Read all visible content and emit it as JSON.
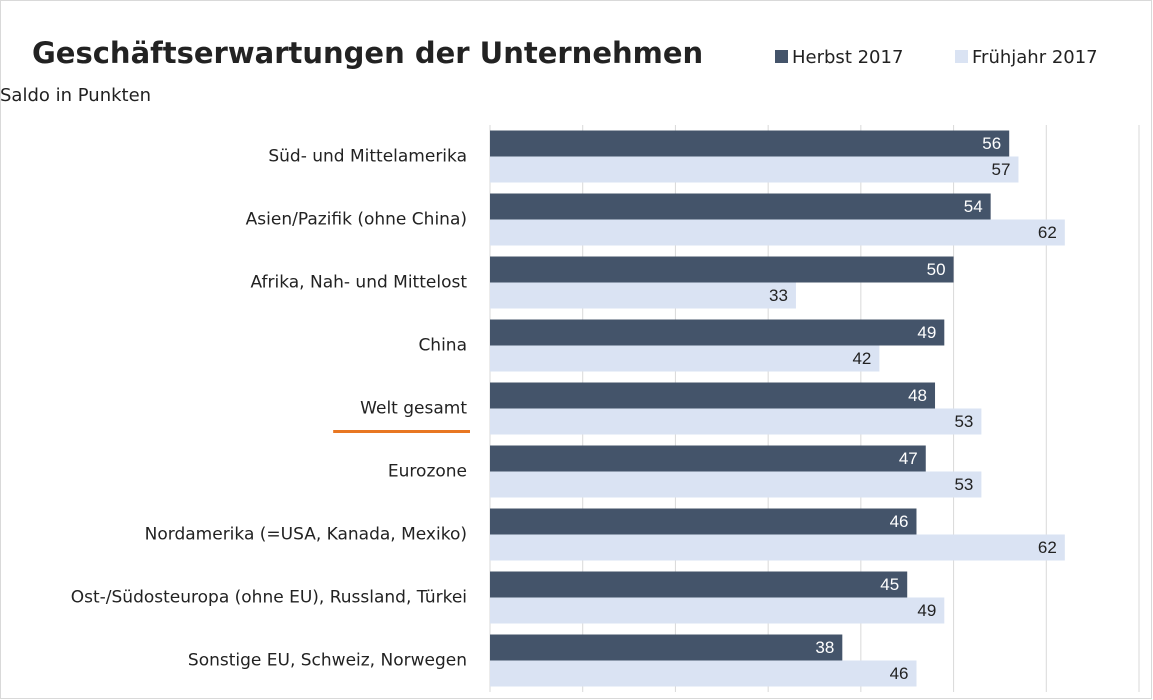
{
  "chart_data": {
    "type": "bar",
    "orientation": "horizontal",
    "title": "Geschäftserwartungen der Unternehmen",
    "subtitle": "Saldo in Punkten",
    "categories": [
      "Süd- und Mittelamerika",
      "Asien/Pazifik (ohne China)",
      "Afrika, Nah- und Mittelost",
      "China",
      "Welt gesamt",
      "Eurozone",
      "Nordamerika (=USA, Kanada, Mexiko)",
      "Ost-/Südosteuropa (ohne EU), Russland, Türkei",
      "Sonstige EU, Schweiz, Norwegen"
    ],
    "series": [
      {
        "name": "Herbst 2017",
        "color": "#44546a",
        "values": [
          56,
          54,
          50,
          49,
          48,
          47,
          46,
          45,
          38
        ]
      },
      {
        "name": "Frühjahr 2017",
        "color": "#dae3f3",
        "values": [
          57,
          62,
          33,
          42,
          53,
          53,
          62,
          49,
          46
        ]
      }
    ],
    "xlim": [
      0,
      70
    ],
    "xticks": [
      0,
      10,
      20,
      30,
      40,
      50,
      60,
      70
    ],
    "grid": true,
    "legend": "top-right",
    "highlight": {
      "index": 4,
      "color": "#e87722"
    }
  }
}
